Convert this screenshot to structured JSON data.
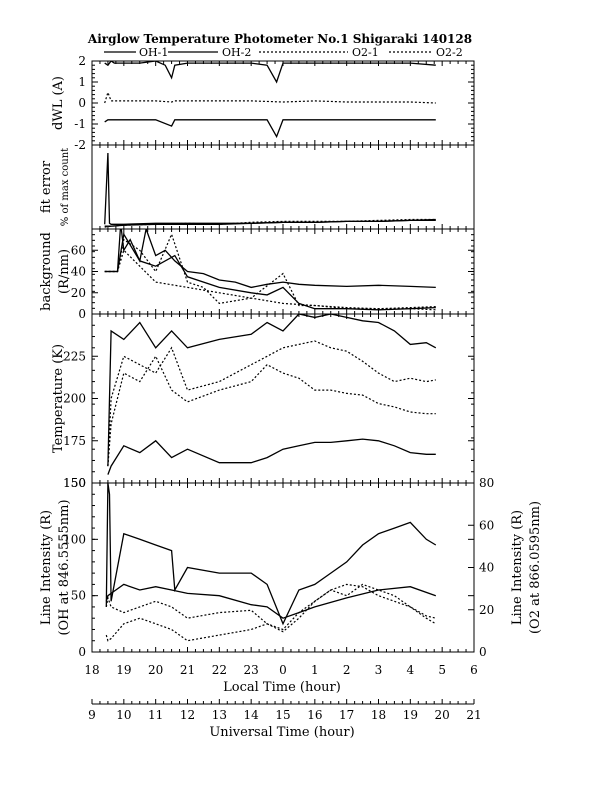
{
  "title": "Airglow Temperature Photometer No.1   Shigaraki   140128",
  "legend": {
    "items": [
      {
        "label": "OH-1",
        "style": "solid"
      },
      {
        "label": "OH-2",
        "style": "solid"
      },
      {
        "label": "O2-1",
        "style": "dotted"
      },
      {
        "label": "O2-2",
        "style": "dotted"
      }
    ]
  },
  "x_axis_local": {
    "label": "Local Time (hour)",
    "ticks": [
      "18",
      "19",
      "20",
      "21",
      "22",
      "23",
      "0",
      "1",
      "2",
      "3",
      "4",
      "5",
      "6"
    ]
  },
  "x_axis_ut": {
    "label": "Universal Time (hour)",
    "ticks": [
      "9",
      "10",
      "11",
      "12",
      "13",
      "14",
      "15",
      "16",
      "17",
      "18",
      "19",
      "20",
      "21"
    ]
  },
  "chart_data": [
    {
      "type": "line",
      "panel": "dwl",
      "ylabel": "dWL (A)",
      "ylim": [
        -2,
        2
      ],
      "yticks": [
        "2",
        "1",
        "0",
        "-1",
        "-2"
      ],
      "series": [
        {
          "style": "solid",
          "x": [
            9.4,
            9.5,
            9.6,
            9.7,
            10,
            10.5,
            11,
            11.3,
            11.5,
            11.6,
            12,
            13,
            14,
            14.5,
            14.8,
            15,
            16,
            17,
            18,
            19,
            19.8
          ],
          "y": [
            1.9,
            1.8,
            2,
            1.9,
            1.9,
            1.9,
            2,
            1.8,
            1.2,
            1.8,
            1.9,
            1.9,
            1.9,
            1.8,
            1.0,
            1.9,
            1.9,
            1.9,
            1.9,
            1.9,
            1.8
          ]
        },
        {
          "style": "dotted",
          "x": [
            9.4,
            9.5,
            9.6,
            9.7,
            10,
            11,
            11.5,
            11.6,
            12,
            13,
            14,
            15,
            16,
            17,
            18,
            19,
            19.8
          ],
          "y": [
            0.0,
            0.5,
            0.1,
            0.1,
            0.1,
            0.1,
            0.05,
            0.1,
            0.1,
            0.1,
            0.1,
            0.05,
            0.1,
            0.05,
            0.05,
            0.05,
            0.0
          ]
        },
        {
          "style": "solid",
          "x": [
            9.4,
            9.5,
            9.6,
            9.7,
            10,
            11,
            11.5,
            11.6,
            12,
            13,
            14,
            14.5,
            14.8,
            15,
            16,
            17,
            18,
            19,
            19.8
          ],
          "y": [
            -0.9,
            -0.8,
            -0.8,
            -0.8,
            -0.8,
            -0.8,
            -1.1,
            -0.8,
            -0.8,
            -0.8,
            -0.8,
            -0.8,
            -1.6,
            -0.8,
            -0.8,
            -0.8,
            -0.8,
            -0.8,
            -0.8
          ]
        }
      ]
    },
    {
      "type": "line",
      "panel": "fit_error",
      "ylabel": "fit error",
      "ylabel2": "% of max count",
      "yticks": [],
      "series": [
        {
          "style": "solid",
          "x": [
            9.4,
            9.5,
            9.55,
            9.6,
            10,
            11,
            12,
            13,
            14,
            15,
            16,
            17,
            18,
            19,
            19.8
          ],
          "y": [
            0.5,
            8,
            0.6,
            0.5,
            0.5,
            0.6,
            0.6,
            0.6,
            0.6,
            0.7,
            0.7,
            0.8,
            0.8,
            0.9,
            0.9
          ]
        },
        {
          "style": "solid",
          "x": [
            9.4,
            9.6,
            10,
            11,
            12,
            13,
            14,
            15,
            16,
            17,
            18,
            19,
            19.8
          ],
          "y": [
            0.3,
            0.3,
            0.4,
            0.5,
            0.5,
            0.5,
            0.6,
            0.7,
            0.7,
            0.8,
            0.8,
            0.9,
            1.0
          ]
        },
        {
          "style": "dotted",
          "x": [
            9.4,
            9.6,
            10,
            11,
            12,
            13,
            14,
            15,
            16,
            17,
            18,
            19,
            19.8
          ],
          "y": [
            0.2,
            0.3,
            0.4,
            0.5,
            0.6,
            0.5,
            0.7,
            0.8,
            0.8,
            0.8,
            0.9,
            1.0,
            1.0
          ]
        }
      ]
    },
    {
      "type": "line",
      "panel": "background",
      "ylabel": "background",
      "ylabel2": "(R/nm)",
      "ylim": [
        0,
        80
      ],
      "yticks": [
        "60",
        "40",
        "20",
        "0"
      ],
      "series": [
        {
          "style": "solid",
          "x": [
            9.4,
            9.8,
            9.9,
            10.0,
            10.2,
            10.5,
            10.7,
            11.0,
            11.3,
            11.6,
            12,
            12.5,
            13,
            13.5,
            14,
            14.5,
            15,
            15.5,
            16,
            17,
            18,
            19,
            19.8
          ],
          "y": [
            40,
            40,
            85,
            60,
            70,
            50,
            80,
            55,
            60,
            50,
            40,
            38,
            32,
            30,
            25,
            28,
            30,
            28,
            27,
            26,
            27,
            26,
            25
          ]
        },
        {
          "style": "solid",
          "x": [
            9.4,
            9.8,
            10,
            10.5,
            11,
            11.6,
            12,
            13,
            14,
            14.5,
            15,
            15.5,
            16,
            17,
            18,
            19,
            19.8
          ],
          "y": [
            40,
            40,
            75,
            50,
            45,
            55,
            35,
            25,
            20,
            18,
            25,
            10,
            5,
            5,
            4,
            5,
            6
          ]
        },
        {
          "style": "dotted",
          "x": [
            9.4,
            9.8,
            10,
            10.5,
            11,
            11.5,
            12,
            12.5,
            13,
            14,
            15,
            15.5,
            16,
            17,
            18,
            19,
            19.8
          ],
          "y": [
            40,
            40,
            70,
            60,
            40,
            75,
            30,
            25,
            10,
            15,
            38,
            8,
            8,
            6,
            5,
            5,
            4
          ]
        },
        {
          "style": "dotted",
          "x": [
            9.4,
            9.8,
            10,
            11,
            12,
            13,
            14,
            15,
            16,
            17,
            18,
            19,
            19.8
          ],
          "y": [
            40,
            40,
            60,
            30,
            25,
            20,
            15,
            10,
            8,
            5,
            5,
            6,
            7
          ]
        }
      ]
    },
    {
      "type": "line",
      "panel": "temperature",
      "ylabel": "Temperature (K)",
      "ylim": [
        150,
        250
      ],
      "yticks": [
        "225",
        "200",
        "175",
        "150"
      ],
      "series": [
        {
          "style": "solid",
          "x": [
            9.5,
            9.6,
            10,
            10.5,
            11,
            11.5,
            12,
            13,
            14,
            14.5,
            15,
            15.5,
            16,
            16.5,
            17,
            17.5,
            18,
            18.5,
            19,
            19.5,
            19.8
          ],
          "y": [
            155,
            160,
            172,
            168,
            175,
            165,
            170,
            162,
            162,
            165,
            170,
            172,
            174,
            174,
            175,
            176,
            175,
            172,
            168,
            167,
            167
          ]
        },
        {
          "style": "solid",
          "x": [
            9.5,
            9.6,
            10,
            10.5,
            11,
            11.5,
            12,
            13,
            14,
            14.5,
            15,
            15.5,
            16,
            16.5,
            17,
            17.5,
            18,
            18.5,
            19,
            19.5,
            19.8
          ],
          "y": [
            160,
            240,
            235,
            245,
            230,
            240,
            230,
            235,
            238,
            245,
            240,
            250,
            248,
            250,
            248,
            246,
            245,
            240,
            232,
            233,
            230
          ]
        },
        {
          "style": "dotted",
          "x": [
            9.5,
            9.6,
            10,
            10.5,
            11,
            11.5,
            12,
            13,
            14,
            14.5,
            15,
            15.5,
            16,
            16.5,
            17,
            17.5,
            18,
            18.5,
            19,
            19.5,
            19.8
          ],
          "y": [
            160,
            200,
            225,
            220,
            215,
            230,
            205,
            210,
            220,
            225,
            230,
            232,
            234,
            230,
            228,
            222,
            215,
            210,
            212,
            210,
            211
          ]
        },
        {
          "style": "dotted",
          "x": [
            9.5,
            9.6,
            10,
            10.5,
            11,
            11.5,
            12,
            13,
            14,
            14.5,
            15,
            15.5,
            16,
            16.5,
            17,
            17.5,
            18,
            18.5,
            19,
            19.5,
            19.8
          ],
          "y": [
            160,
            185,
            215,
            210,
            225,
            205,
            198,
            205,
            210,
            220,
            215,
            212,
            205,
            205,
            203,
            202,
            197,
            195,
            192,
            191,
            191
          ]
        }
      ]
    },
    {
      "type": "line",
      "panel": "intensity",
      "ylabel": "Line Intensity (R)",
      "ylabel2": "(OH at 846.5555nm)",
      "ylim": [
        0,
        150
      ],
      "yticks": [
        "150",
        "100",
        "50",
        "0"
      ],
      "ylabel_right": "Line Intensity (R)",
      "ylabel_right2": "(O2 at 866.0595nm)",
      "ylim_right": [
        0,
        80
      ],
      "yticks_right": [
        "80",
        "60",
        "40",
        "20",
        "0"
      ],
      "series": [
        {
          "style": "solid",
          "x": [
            9.45,
            9.5,
            9.55,
            9.6,
            10,
            10.5,
            11,
            11.5,
            11.6,
            12,
            13,
            14,
            14.5,
            15,
            15.5,
            16,
            16.5,
            17,
            17.5,
            18,
            18.5,
            19,
            19.5,
            19.8
          ],
          "y": [
            40,
            150,
            140,
            45,
            105,
            100,
            95,
            90,
            55,
            75,
            70,
            70,
            60,
            25,
            55,
            60,
            70,
            80,
            95,
            105,
            110,
            115,
            100,
            95
          ]
        },
        {
          "style": "solid",
          "x": [
            9.45,
            9.5,
            9.6,
            10,
            10.5,
            11,
            11.5,
            12,
            13,
            14,
            14.5,
            15,
            15.5,
            16,
            17,
            18,
            19,
            19.8
          ],
          "y": [
            45,
            50,
            52,
            60,
            55,
            58,
            55,
            52,
            50,
            42,
            40,
            30,
            35,
            40,
            48,
            55,
            58,
            50
          ]
        },
        {
          "style": "dotted",
          "x": [
            9.45,
            9.5,
            9.6,
            10,
            10.5,
            11,
            11.5,
            12,
            13,
            14,
            14.5,
            15,
            15.5,
            16,
            16.5,
            17,
            17.5,
            18,
            18.5,
            19,
            19.5,
            19.8
          ],
          "y": [
            40,
            48,
            40,
            35,
            40,
            45,
            40,
            30,
            35,
            37,
            25,
            18,
            30,
            45,
            55,
            50,
            60,
            55,
            50,
            40,
            32,
            30
          ]
        },
        {
          "style": "dotted",
          "x": [
            9.45,
            9.5,
            9.6,
            10,
            10.5,
            11,
            11.5,
            12,
            13,
            14,
            14.5,
            15,
            15.5,
            16,
            16.5,
            17,
            17.5,
            18,
            18.5,
            19,
            19.5,
            19.8
          ],
          "y": [
            15,
            10,
            12,
            25,
            30,
            25,
            20,
            10,
            15,
            20,
            25,
            20,
            35,
            45,
            55,
            60,
            58,
            50,
            45,
            40,
            30,
            25
          ]
        }
      ]
    }
  ]
}
